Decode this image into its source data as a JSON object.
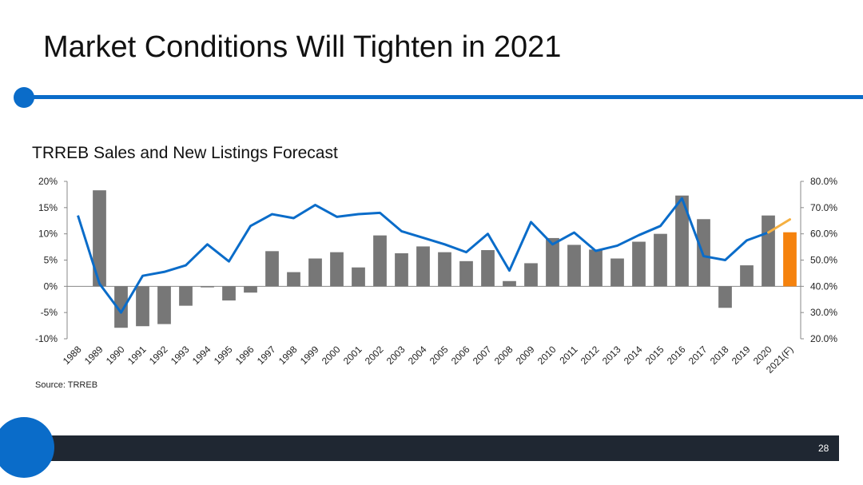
{
  "slide": {
    "title": "Market Conditions Will Tighten in 2021",
    "page_number": "28",
    "source": "Source: TRREB"
  },
  "colors": {
    "accent": "#0a6cc9",
    "bar": "#777777",
    "forecast_bar": "#f5820d",
    "line": "#0a6cc9",
    "forecast_line": "#f5b041",
    "footer": "#1f2732"
  },
  "chart_data": {
    "type": "bar",
    "title": "TRREB Sales and New Listings Forecast",
    "categories": [
      "1988",
      "1989",
      "1990",
      "1991",
      "1992",
      "1993",
      "1994",
      "1995",
      "1996",
      "1997",
      "1998",
      "1999",
      "2000",
      "2001",
      "2002",
      "2003",
      "2004",
      "2005",
      "2006",
      "2007",
      "2008",
      "2009",
      "2010",
      "2011",
      "2012",
      "2013",
      "2014",
      "2015",
      "2016",
      "2017",
      "2018",
      "2019",
      "2020",
      "2021(F)"
    ],
    "series": [
      {
        "axis": "left",
        "chart_type": "bar",
        "values": [
          null,
          18.3,
          -7.9,
          -7.6,
          -7.2,
          -3.7,
          -0.2,
          -2.7,
          -1.2,
          6.7,
          2.7,
          5.3,
          6.5,
          3.6,
          9.7,
          6.3,
          7.6,
          6.5,
          4.8,
          6.9,
          1.0,
          4.4,
          9.2,
          7.9,
          7.0,
          5.3,
          8.5,
          10.0,
          17.3,
          12.8,
          -4.1,
          4.0,
          13.5,
          10.3
        ]
      },
      {
        "axis": "right",
        "chart_type": "line",
        "values": [
          67.0,
          41.0,
          30.0,
          44.0,
          45.5,
          48.0,
          56.0,
          49.5,
          63.0,
          67.5,
          66.0,
          71.0,
          66.5,
          67.5,
          68.0,
          61.0,
          58.5,
          56.0,
          53.0,
          60.0,
          46.0,
          64.5,
          56.0,
          60.5,
          53.5,
          55.5,
          59.5,
          63.0,
          73.5,
          51.5,
          50.0,
          57.5,
          60.5,
          65.5
        ]
      }
    ],
    "forecast_category": "2021(F)",
    "y_left": {
      "ylim": [
        -10,
        20
      ],
      "ticks": [
        "-10%",
        "-5%",
        "0%",
        "5%",
        "10%",
        "15%",
        "20%"
      ]
    },
    "y_right": {
      "ylim": [
        20,
        80
      ],
      "ticks": [
        "20.0%",
        "30.0%",
        "40.0%",
        "50.0%",
        "60.0%",
        "70.0%",
        "80.0%"
      ]
    },
    "grid": false,
    "legend": "none"
  }
}
